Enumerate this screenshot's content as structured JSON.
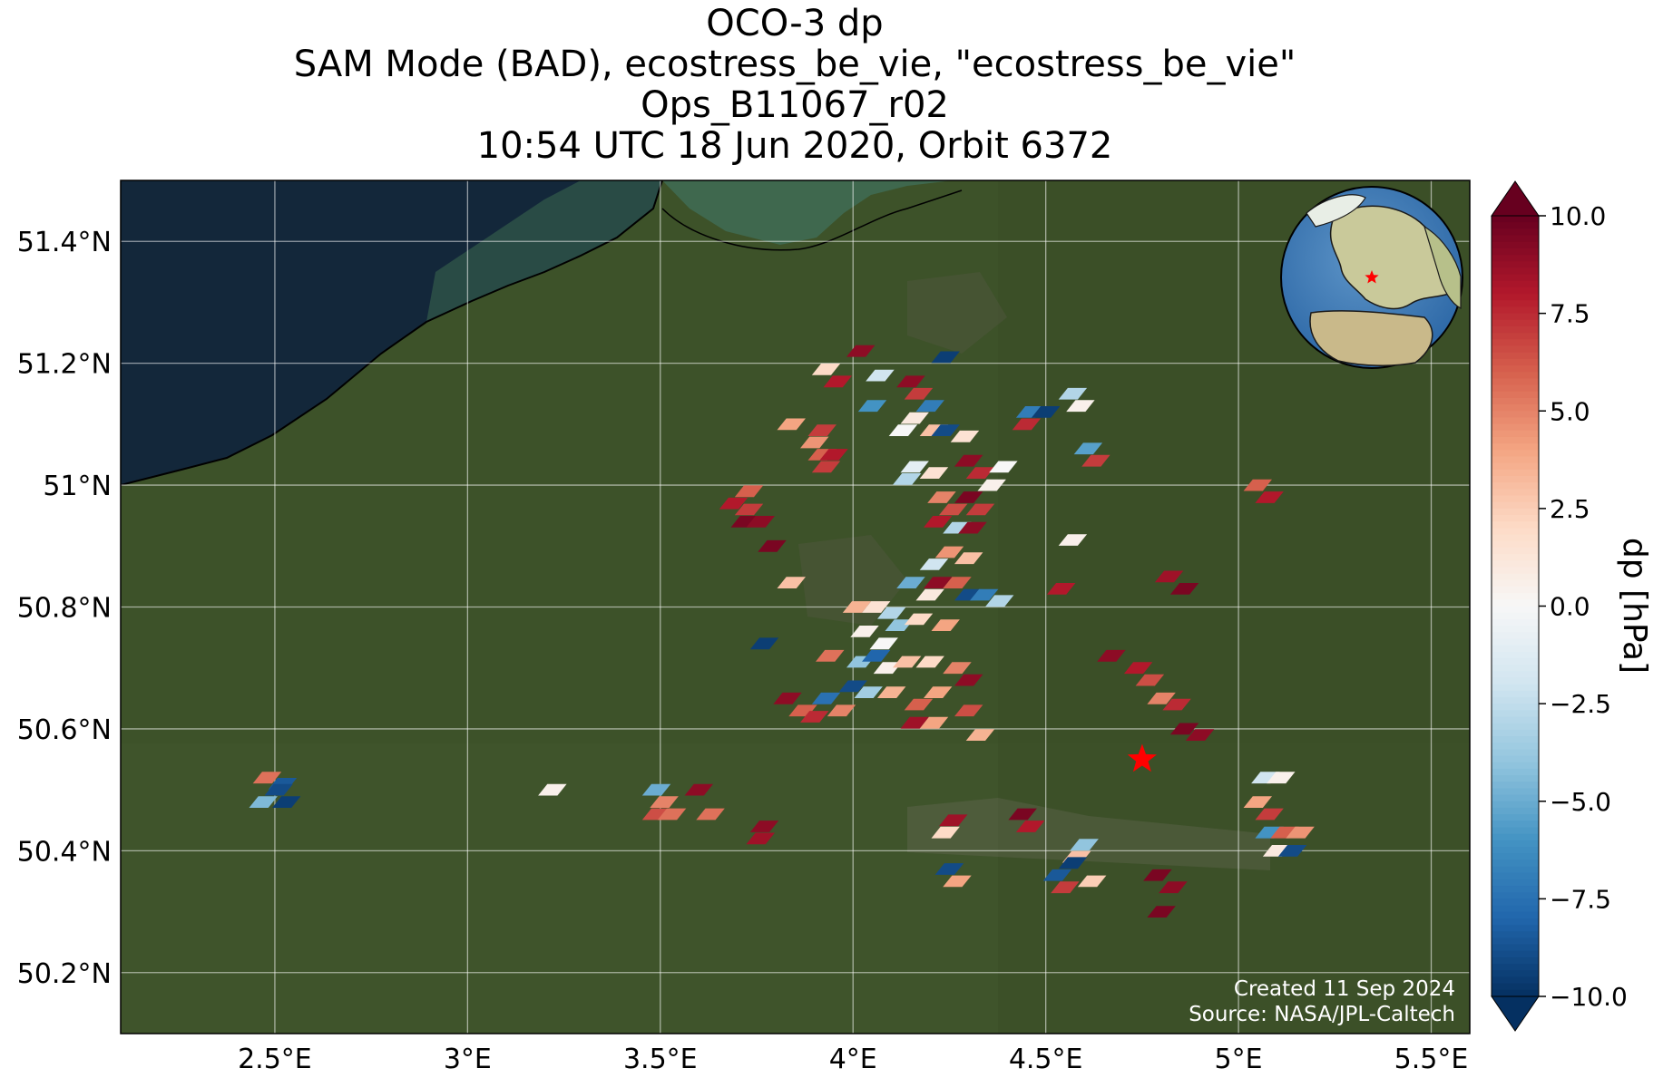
{
  "title": {
    "line1": "OCO-3 dp",
    "line2": "SAM Mode (BAD), ecostress_be_vie, \"ecostress_be_vie\"",
    "line3": "Ops_B11067_r02",
    "line4": "10:54 UTC 18 Jun 2020, Orbit 6372"
  },
  "map": {
    "lon_range": [
      2.1,
      5.6
    ],
    "lat_range": [
      50.1,
      51.5
    ],
    "lon_ticks": [
      "2.5°E",
      "3°E",
      "3.5°E",
      "4°E",
      "4.5°E",
      "5°E",
      "5.5°E"
    ],
    "lon_tick_values": [
      2.5,
      3.0,
      3.5,
      4.0,
      4.5,
      5.0,
      5.5
    ],
    "lat_ticks": [
      "51.4°N",
      "51.2°N",
      "51°N",
      "50.8°N",
      "50.6°N",
      "50.4°N",
      "50.2°N"
    ],
    "lat_tick_values": [
      51.4,
      51.2,
      51.0,
      50.8,
      50.6,
      50.4,
      50.2
    ],
    "target_marker": {
      "lon": 4.75,
      "lat": 50.55,
      "symbol": "star",
      "color": "#ff0000"
    },
    "background": "satellite imagery",
    "sea_color": "#13273a",
    "land_color": "#3c5128",
    "gridlines": true
  },
  "inset_globe": {
    "marker": "star",
    "marker_color": "#ff0000"
  },
  "colorbar": {
    "label": "dp [hPa]",
    "tick_labels": [
      "10.0",
      "7.5",
      "5.0",
      "2.5",
      "0.0",
      "−2.5",
      "−5.0",
      "−7.5",
      "−10.0"
    ],
    "tick_values": [
      10,
      7.5,
      5,
      2.5,
      0,
      -2.5,
      -5,
      -7.5,
      -10
    ],
    "range": [
      -10,
      10
    ],
    "extend": "both",
    "colormap": "RdBu_r",
    "colors": [
      "#053061",
      "#2166ac",
      "#4393c3",
      "#92c5de",
      "#d1e5f0",
      "#f7f7f7",
      "#fddbc7",
      "#f4a582",
      "#d6604d",
      "#b2182b",
      "#67001f"
    ]
  },
  "credits": {
    "line1": "Created 11 Sep 2024",
    "line2": "Source: NASA/JPL-Caltech"
  },
  "chart_data": {
    "type": "scatter",
    "xlabel": "",
    "ylabel": "",
    "xlim": [
      2.1,
      5.6
    ],
    "ylim": [
      50.1,
      51.5
    ],
    "value_label": "dp [hPa]",
    "points": [
      {
        "lon": 2.48,
        "lat": 50.52,
        "v": 5.5
      },
      {
        "lon": 2.52,
        "lat": 50.51,
        "v": -8.5
      },
      {
        "lon": 2.47,
        "lat": 50.48,
        "v": -4.5
      },
      {
        "lon": 2.53,
        "lat": 50.48,
        "v": -9.5
      },
      {
        "lon": 2.51,
        "lat": 50.5,
        "v": -9.0
      },
      {
        "lon": 3.22,
        "lat": 50.5,
        "v": 0.5
      },
      {
        "lon": 3.49,
        "lat": 50.5,
        "v": -5.0
      },
      {
        "lon": 3.51,
        "lat": 50.48,
        "v": 5.0
      },
      {
        "lon": 3.49,
        "lat": 50.46,
        "v": 6.5
      },
      {
        "lon": 3.53,
        "lat": 50.46,
        "v": 5.5
      },
      {
        "lon": 3.6,
        "lat": 50.5,
        "v": 9.0
      },
      {
        "lon": 3.63,
        "lat": 50.46,
        "v": 5.5
      },
      {
        "lon": 3.77,
        "lat": 50.44,
        "v": 9.0
      },
      {
        "lon": 3.76,
        "lat": 50.42,
        "v": 8.5
      },
      {
        "lon": 3.69,
        "lat": 50.97,
        "v": 8.0
      },
      {
        "lon": 3.73,
        "lat": 50.96,
        "v": 7.0
      },
      {
        "lon": 3.72,
        "lat": 50.94,
        "v": 9.5
      },
      {
        "lon": 3.76,
        "lat": 50.94,
        "v": 9.0
      },
      {
        "lon": 3.73,
        "lat": 50.99,
        "v": 6.0
      },
      {
        "lon": 3.79,
        "lat": 50.9,
        "v": 9.5
      },
      {
        "lon": 3.84,
        "lat": 51.1,
        "v": 4.0
      },
      {
        "lon": 3.92,
        "lat": 51.09,
        "v": 7.0
      },
      {
        "lon": 3.9,
        "lat": 51.07,
        "v": 4.5
      },
      {
        "lon": 3.92,
        "lat": 51.05,
        "v": 6.0
      },
      {
        "lon": 3.95,
        "lat": 51.05,
        "v": 8.0
      },
      {
        "lon": 3.93,
        "lat": 51.03,
        "v": 7.0
      },
      {
        "lon": 3.93,
        "lat": 51.19,
        "v": 2.0
      },
      {
        "lon": 3.96,
        "lat": 51.17,
        "v": 8.0
      },
      {
        "lon": 4.02,
        "lat": 51.22,
        "v": 9.0
      },
      {
        "lon": 4.07,
        "lat": 51.18,
        "v": -2.0
      },
      {
        "lon": 4.05,
        "lat": 51.13,
        "v": -6.0
      },
      {
        "lon": 4.15,
        "lat": 51.17,
        "v": 9.0
      },
      {
        "lon": 4.17,
        "lat": 51.15,
        "v": 7.0
      },
      {
        "lon": 4.2,
        "lat": 51.13,
        "v": -7.0
      },
      {
        "lon": 4.24,
        "lat": 51.21,
        "v": -9.5
      },
      {
        "lon": 4.16,
        "lat": 51.11,
        "v": 1.0
      },
      {
        "lon": 4.13,
        "lat": 51.09,
        "v": 0.0
      },
      {
        "lon": 4.21,
        "lat": 51.09,
        "v": 3.0
      },
      {
        "lon": 4.24,
        "lat": 51.09,
        "v": -9.0
      },
      {
        "lon": 4.29,
        "lat": 51.08,
        "v": 1.5
      },
      {
        "lon": 4.16,
        "lat": 51.03,
        "v": -1.0
      },
      {
        "lon": 4.21,
        "lat": 51.02,
        "v": 1.5
      },
      {
        "lon": 4.3,
        "lat": 51.04,
        "v": 9.0
      },
      {
        "lon": 4.33,
        "lat": 51.02,
        "v": 7.5
      },
      {
        "lon": 4.36,
        "lat": 51.0,
        "v": 0.5
      },
      {
        "lon": 4.39,
        "lat": 51.03,
        "v": 0.0
      },
      {
        "lon": 4.23,
        "lat": 50.98,
        "v": 5.0
      },
      {
        "lon": 4.26,
        "lat": 50.96,
        "v": 6.5
      },
      {
        "lon": 4.3,
        "lat": 50.98,
        "v": 9.5
      },
      {
        "lon": 4.33,
        "lat": 50.96,
        "v": 7.0
      },
      {
        "lon": 4.22,
        "lat": 50.94,
        "v": 8.0
      },
      {
        "lon": 4.27,
        "lat": 50.93,
        "v": -3.0
      },
      {
        "lon": 4.31,
        "lat": 50.93,
        "v": 9.0
      },
      {
        "lon": 4.21,
        "lat": 50.87,
        "v": -2.0
      },
      {
        "lon": 4.25,
        "lat": 50.89,
        "v": 4.5
      },
      {
        "lon": 4.3,
        "lat": 50.88,
        "v": 3.0
      },
      {
        "lon": 4.27,
        "lat": 50.84,
        "v": 6.0
      },
      {
        "lon": 4.22,
        "lat": 50.84,
        "v": 9.0
      },
      {
        "lon": 4.15,
        "lat": 50.84,
        "v": -5.0
      },
      {
        "lon": 4.3,
        "lat": 50.82,
        "v": -9.0
      },
      {
        "lon": 4.34,
        "lat": 50.82,
        "v": -7.0
      },
      {
        "lon": 4.38,
        "lat": 50.81,
        "v": -3.0
      },
      {
        "lon": 4.12,
        "lat": 50.77,
        "v": -4.0
      },
      {
        "lon": 4.17,
        "lat": 50.78,
        "v": 2.0
      },
      {
        "lon": 4.24,
        "lat": 50.77,
        "v": 4.0
      },
      {
        "lon": 4.01,
        "lat": 50.8,
        "v": 3.5
      },
      {
        "lon": 4.06,
        "lat": 50.8,
        "v": 1.5
      },
      {
        "lon": 4.1,
        "lat": 50.79,
        "v": -3.0
      },
      {
        "lon": 4.03,
        "lat": 50.76,
        "v": 0.5
      },
      {
        "lon": 4.08,
        "lat": 50.74,
        "v": 0.0
      },
      {
        "lon": 3.94,
        "lat": 50.72,
        "v": 5.5
      },
      {
        "lon": 4.02,
        "lat": 50.71,
        "v": -4.0
      },
      {
        "lon": 4.06,
        "lat": 50.72,
        "v": -8.0
      },
      {
        "lon": 4.09,
        "lat": 50.7,
        "v": 0.5
      },
      {
        "lon": 4.14,
        "lat": 50.71,
        "v": 3.0
      },
      {
        "lon": 4.2,
        "lat": 50.71,
        "v": 2.0
      },
      {
        "lon": 4.27,
        "lat": 50.7,
        "v": 5.0
      },
      {
        "lon": 4.3,
        "lat": 50.68,
        "v": 9.0
      },
      {
        "lon": 4.0,
        "lat": 50.67,
        "v": -9.0
      },
      {
        "lon": 4.04,
        "lat": 50.66,
        "v": -3.5
      },
      {
        "lon": 4.1,
        "lat": 50.66,
        "v": 3.5
      },
      {
        "lon": 4.17,
        "lat": 50.64,
        "v": 6.0
      },
      {
        "lon": 4.22,
        "lat": 50.66,
        "v": 4.0
      },
      {
        "lon": 3.83,
        "lat": 50.65,
        "v": 9.0
      },
      {
        "lon": 3.87,
        "lat": 50.63,
        "v": 6.0
      },
      {
        "lon": 3.9,
        "lat": 50.62,
        "v": 7.5
      },
      {
        "lon": 3.93,
        "lat": 50.65,
        "v": -7.5
      },
      {
        "lon": 3.97,
        "lat": 50.63,
        "v": 5.0
      },
      {
        "lon": 4.16,
        "lat": 50.61,
        "v": 8.5
      },
      {
        "lon": 4.21,
        "lat": 50.61,
        "v": 4.0
      },
      {
        "lon": 4.3,
        "lat": 50.63,
        "v": 6.5
      },
      {
        "lon": 4.33,
        "lat": 50.59,
        "v": 3.5
      },
      {
        "lon": 3.77,
        "lat": 50.74,
        "v": -9.5
      },
      {
        "lon": 3.84,
        "lat": 50.84,
        "v": 3.0
      },
      {
        "lon": 4.14,
        "lat": 51.01,
        "v": -3.0
      },
      {
        "lon": 4.2,
        "lat": 50.82,
        "v": 1.0
      },
      {
        "lon": 4.46,
        "lat": 51.12,
        "v": -7.0
      },
      {
        "lon": 4.5,
        "lat": 51.12,
        "v": -9.5
      },
      {
        "lon": 4.45,
        "lat": 51.1,
        "v": 7.5
      },
      {
        "lon": 4.57,
        "lat": 51.15,
        "v": -3.0
      },
      {
        "lon": 4.59,
        "lat": 51.13,
        "v": 0.5
      },
      {
        "lon": 4.61,
        "lat": 51.06,
        "v": -5.5
      },
      {
        "lon": 4.63,
        "lat": 51.04,
        "v": 7.0
      },
      {
        "lon": 4.57,
        "lat": 50.91,
        "v": 0.5
      },
      {
        "lon": 4.54,
        "lat": 50.83,
        "v": 8.0
      },
      {
        "lon": 4.67,
        "lat": 50.72,
        "v": 9.0
      },
      {
        "lon": 4.74,
        "lat": 50.7,
        "v": 8.0
      },
      {
        "lon": 4.77,
        "lat": 50.68,
        "v": 6.5
      },
      {
        "lon": 4.8,
        "lat": 50.65,
        "v": 5.0
      },
      {
        "lon": 4.84,
        "lat": 50.64,
        "v": 7.5
      },
      {
        "lon": 4.86,
        "lat": 50.6,
        "v": 9.5
      },
      {
        "lon": 4.9,
        "lat": 50.59,
        "v": 9.0
      },
      {
        "lon": 4.82,
        "lat": 50.85,
        "v": 8.5
      },
      {
        "lon": 4.86,
        "lat": 50.83,
        "v": 9.5
      },
      {
        "lon": 5.05,
        "lat": 51.0,
        "v": 6.0
      },
      {
        "lon": 5.08,
        "lat": 50.98,
        "v": 8.0
      },
      {
        "lon": 5.07,
        "lat": 50.52,
        "v": -2.0
      },
      {
        "lon": 5.11,
        "lat": 50.52,
        "v": 0.5
      },
      {
        "lon": 5.05,
        "lat": 50.48,
        "v": 4.0
      },
      {
        "lon": 5.08,
        "lat": 50.46,
        "v": 7.0
      },
      {
        "lon": 5.08,
        "lat": 50.43,
        "v": -6.0
      },
      {
        "lon": 5.12,
        "lat": 50.43,
        "v": 6.0
      },
      {
        "lon": 5.16,
        "lat": 50.43,
        "v": 4.5
      },
      {
        "lon": 5.1,
        "lat": 50.4,
        "v": 1.0
      },
      {
        "lon": 5.14,
        "lat": 50.4,
        "v": -9.0
      },
      {
        "lon": 4.26,
        "lat": 50.45,
        "v": 8.5
      },
      {
        "lon": 4.24,
        "lat": 50.43,
        "v": 2.0
      },
      {
        "lon": 4.25,
        "lat": 50.37,
        "v": -9.0
      },
      {
        "lon": 4.27,
        "lat": 50.35,
        "v": 4.0
      },
      {
        "lon": 4.44,
        "lat": 50.46,
        "v": 9.5
      },
      {
        "lon": 4.46,
        "lat": 50.44,
        "v": 8.0
      },
      {
        "lon": 4.53,
        "lat": 50.36,
        "v": -8.5
      },
      {
        "lon": 4.55,
        "lat": 50.34,
        "v": 7.0
      },
      {
        "lon": 4.58,
        "lat": 50.39,
        "v": 3.0
      },
      {
        "lon": 4.6,
        "lat": 50.41,
        "v": -4.0
      },
      {
        "lon": 4.57,
        "lat": 50.38,
        "v": -9.5
      },
      {
        "lon": 4.62,
        "lat": 50.35,
        "v": 2.5
      },
      {
        "lon": 4.79,
        "lat": 50.36,
        "v": 9.5
      },
      {
        "lon": 4.83,
        "lat": 50.34,
        "v": 9.0
      },
      {
        "lon": 4.8,
        "lat": 50.3,
        "v": 9.5
      }
    ]
  }
}
